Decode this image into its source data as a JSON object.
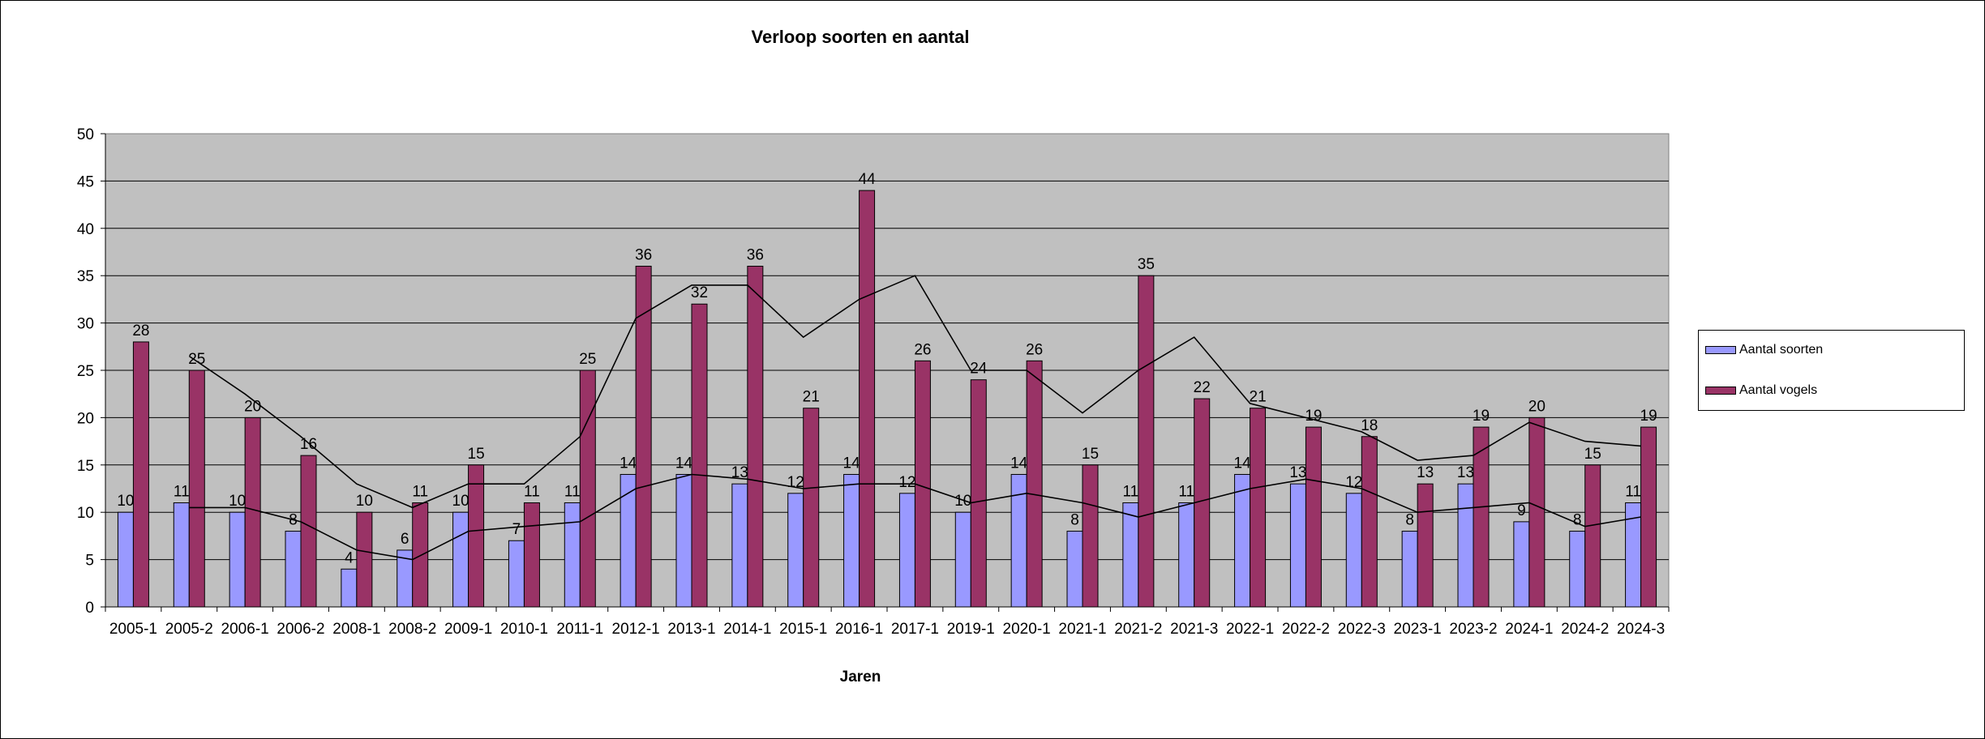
{
  "colors": {
    "plot_bg": "#c0c0c0",
    "series_1": "#9999ff",
    "series_2": "#993366",
    "gridline": "#000000"
  },
  "chart_data": {
    "type": "bar",
    "title": "Verloop soorten en aantal",
    "xlabel": "Jaren",
    "ylabel": "",
    "ylim": [
      0,
      50
    ],
    "yticks": [
      0,
      5,
      10,
      15,
      20,
      25,
      30,
      35,
      40,
      45,
      50
    ],
    "grid": true,
    "legend_position": "right",
    "categories": [
      "2005-1",
      "2005-2",
      "2006-1",
      "2006-2",
      "2008-1",
      "2008-2",
      "2009-1",
      "2010-1",
      "2011-1",
      "2012-1",
      "2013-1",
      "2014-1",
      "2015-1",
      "2016-1",
      "2017-1",
      "2019-1",
      "2020-1",
      "2021-1",
      "2021-2",
      "2021-3",
      "2022-1",
      "2022-2",
      "2022-3",
      "2023-1",
      "2023-2",
      "2024-1",
      "2024-2",
      "2024-3"
    ],
    "series": [
      {
        "name": "Aantal soorten",
        "values": [
          10,
          11,
          10,
          8,
          4,
          6,
          10,
          7,
          11,
          14,
          14,
          13,
          12,
          14,
          12,
          10,
          14,
          8,
          11,
          11,
          14,
          13,
          12,
          8,
          13,
          9,
          8,
          11
        ]
      },
      {
        "name": "Aantal vogels",
        "values": [
          28,
          25,
          20,
          16,
          10,
          11,
          15,
          11,
          25,
          36,
          32,
          36,
          21,
          44,
          26,
          24,
          26,
          15,
          35,
          22,
          21,
          19,
          18,
          13,
          19,
          20,
          15,
          19
        ]
      }
    ],
    "trendlines": [
      {
        "type": "moving-average",
        "period": 2,
        "of_series": "Aantal soorten",
        "values": [
          10.5,
          10.5,
          9,
          6,
          5,
          8,
          8.5,
          9,
          12.5,
          14,
          13.5,
          12.5,
          13,
          13,
          11,
          12,
          11,
          9.5,
          11,
          12.5,
          13.5,
          12.5,
          10,
          10.5,
          11,
          8.5,
          9.5
        ]
      },
      {
        "type": "moving-average",
        "period": 2,
        "of_series": "Aantal vogels",
        "values": [
          26.5,
          22.5,
          18,
          13,
          10.5,
          13,
          13,
          18,
          30.5,
          34,
          34,
          28.5,
          32.5,
          35,
          25,
          25,
          20.5,
          25,
          28.5,
          21.5,
          20,
          18.5,
          15.5,
          16,
          19.5,
          17.5,
          17
        ]
      }
    ]
  }
}
